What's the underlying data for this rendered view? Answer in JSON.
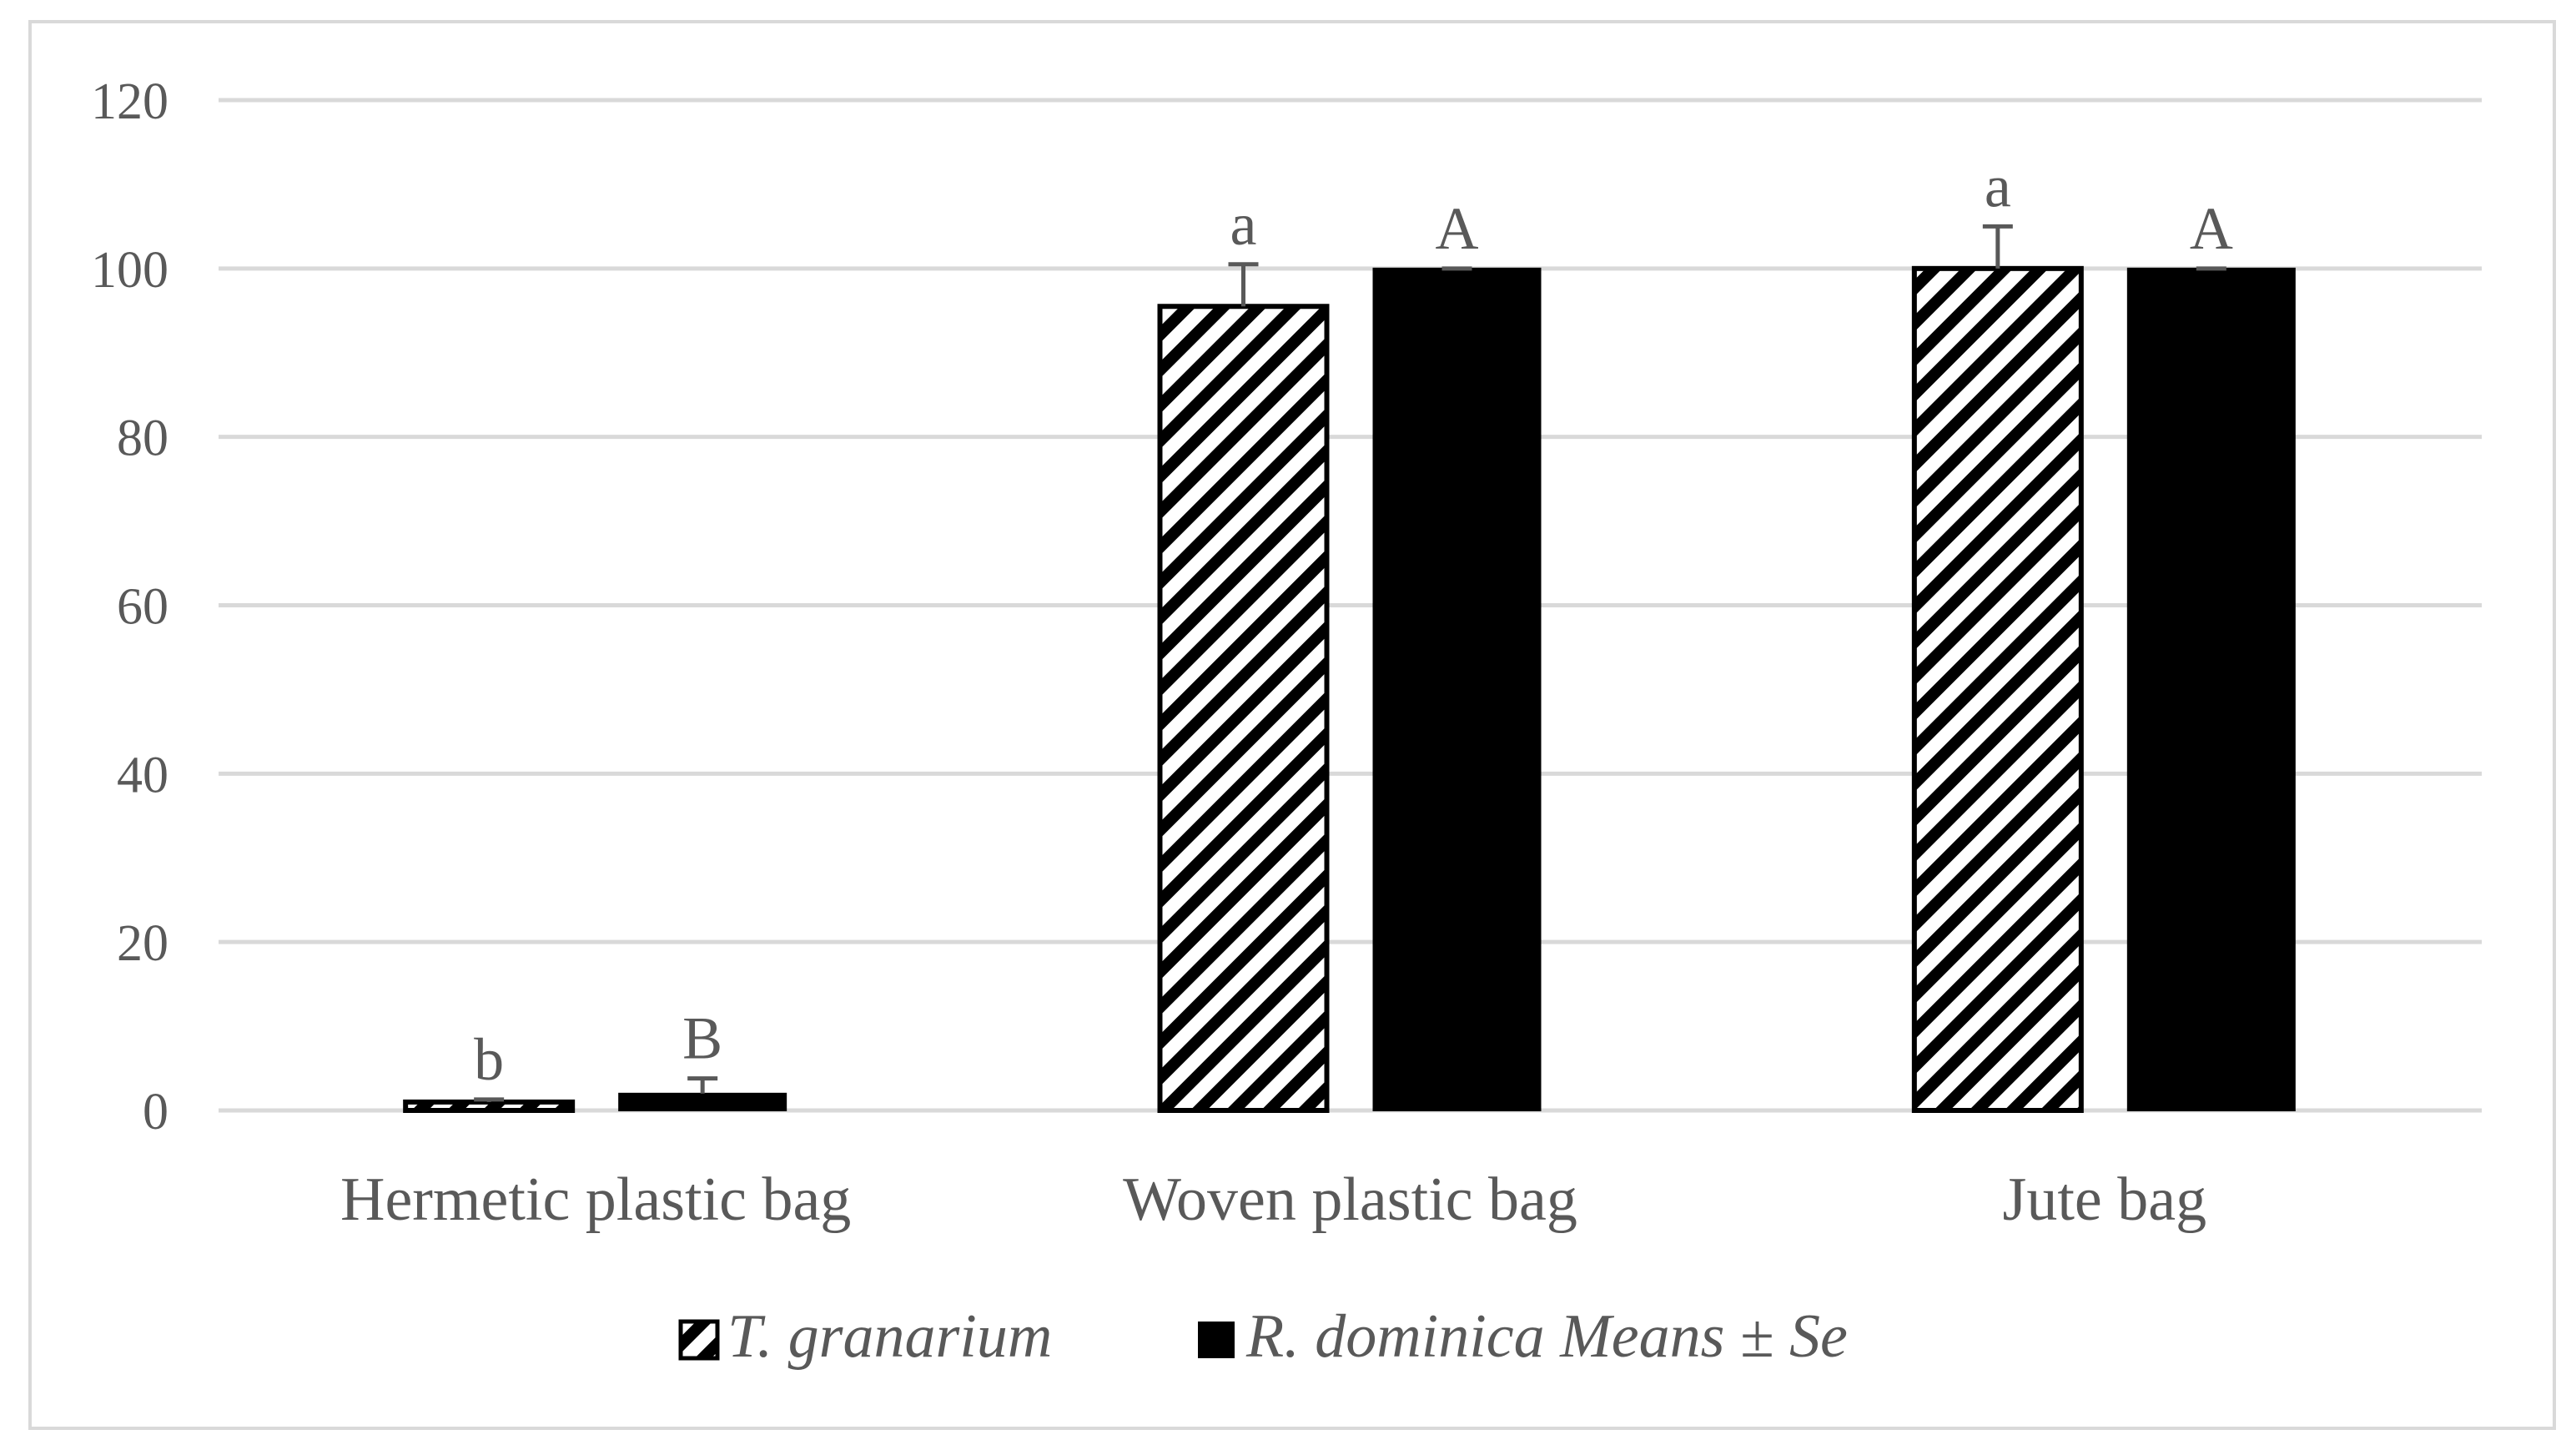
{
  "chart_data": {
    "type": "bar",
    "title": "",
    "xlabel": "",
    "ylabel": "",
    "ylim": [
      0,
      120
    ],
    "yticks": [
      0,
      20,
      40,
      60,
      80,
      100,
      120
    ],
    "grid": true,
    "legend_position": "bottom",
    "categories": [
      "Hermetic plastic bag",
      "Woven plastic bag",
      "Jute bag"
    ],
    "series": [
      {
        "name": "T. granarium",
        "pattern": "diagonal-stripes",
        "color": "#000000",
        "values": [
          1,
          95.5,
          100
        ],
        "errors": [
          0.3,
          5,
          5
        ],
        "labels": [
          "b",
          "a",
          "a"
        ]
      },
      {
        "name": "R. dominica",
        "pattern": "solid",
        "color": "#000000",
        "values": [
          2,
          100,
          100
        ],
        "errors": [
          1.8,
          0,
          0
        ],
        "labels": [
          "B",
          "A",
          "A"
        ]
      }
    ],
    "legend_note": "Means ± Se"
  },
  "colors": {
    "grid": "#d9d9d9",
    "text": "#595959",
    "bar": "#000000",
    "frame": "#d9d9d9"
  }
}
